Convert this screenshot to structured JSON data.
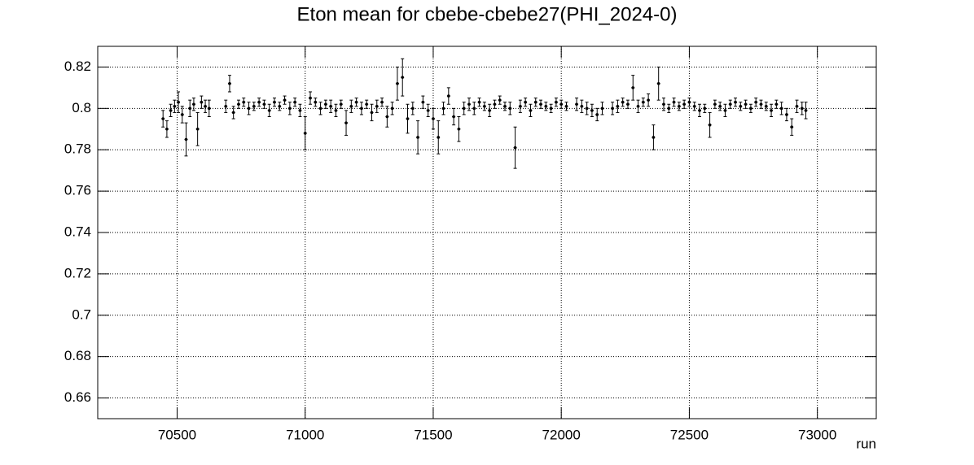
{
  "chart_data": {
    "type": "errorbar-scatter",
    "title": "Eton mean for cbebe-cbebe27(PHI_2024-0)",
    "x_label": "run",
    "xlim": [
      70190,
      73230
    ],
    "ylim": [
      0.65,
      0.83
    ],
    "xticks": [
      70500,
      71000,
      71500,
      72000,
      72500,
      73000
    ],
    "yticks": [
      0.66,
      0.68,
      0.7,
      0.72,
      0.74,
      0.76,
      0.78,
      0.8,
      0.82
    ],
    "grid": true,
    "color": "#000000",
    "x": [
      70445,
      70460,
      70475,
      70490,
      70505,
      70520,
      70535,
      70550,
      70565,
      70580,
      70595,
      70610,
      70625,
      70690,
      70705,
      70720,
      70740,
      70760,
      70780,
      70800,
      70820,
      70840,
      70860,
      70880,
      70900,
      70920,
      70940,
      70960,
      70980,
      71000,
      71020,
      71040,
      71060,
      71080,
      71100,
      71120,
      71140,
      71160,
      71180,
      71200,
      71220,
      71240,
      71260,
      71280,
      71300,
      71320,
      71340,
      71360,
      71380,
      71400,
      71420,
      71440,
      71460,
      71480,
      71500,
      71520,
      71540,
      71560,
      71580,
      71600,
      71620,
      71640,
      71660,
      71680,
      71700,
      71720,
      71740,
      71760,
      71780,
      71800,
      71820,
      71840,
      71860,
      71880,
      71900,
      71920,
      71940,
      71960,
      71980,
      72000,
      72020,
      72060,
      72080,
      72100,
      72120,
      72140,
      72160,
      72200,
      72220,
      72240,
      72260,
      72280,
      72300,
      72320,
      72340,
      72360,
      72380,
      72400,
      72420,
      72440,
      72460,
      72480,
      72500,
      72520,
      72540,
      72560,
      72580,
      72600,
      72620,
      72640,
      72660,
      72680,
      72700,
      72720,
      72740,
      72760,
      72780,
      72800,
      72820,
      72840,
      72860,
      72880,
      72900,
      72920,
      72940,
      72955
    ],
    "values": [
      0.795,
      0.79,
      0.799,
      0.801,
      0.803,
      0.797,
      0.785,
      0.8,
      0.802,
      0.79,
      0.803,
      0.801,
      0.8,
      0.801,
      0.812,
      0.798,
      0.802,
      0.803,
      0.8,
      0.801,
      0.803,
      0.802,
      0.799,
      0.803,
      0.801,
      0.804,
      0.8,
      0.803,
      0.799,
      0.788,
      0.805,
      0.803,
      0.8,
      0.802,
      0.801,
      0.799,
      0.802,
      0.793,
      0.801,
      0.803,
      0.8,
      0.802,
      0.798,
      0.801,
      0.803,
      0.796,
      0.8,
      0.812,
      0.815,
      0.795,
      0.8,
      0.786,
      0.803,
      0.799,
      0.795,
      0.786,
      0.8,
      0.806,
      0.796,
      0.79,
      0.8,
      0.802,
      0.8,
      0.803,
      0.801,
      0.799,
      0.802,
      0.804,
      0.801,
      0.8,
      0.781,
      0.801,
      0.803,
      0.799,
      0.803,
      0.802,
      0.801,
      0.8,
      0.803,
      0.802,
      0.801,
      0.802,
      0.801,
      0.8,
      0.799,
      0.797,
      0.8,
      0.8,
      0.801,
      0.803,
      0.802,
      0.81,
      0.801,
      0.803,
      0.804,
      0.786,
      0.812,
      0.802,
      0.8,
      0.803,
      0.801,
      0.802,
      0.803,
      0.801,
      0.799,
      0.8,
      0.792,
      0.802,
      0.801,
      0.799,
      0.802,
      0.803,
      0.801,
      0.802,
      0.8,
      0.803,
      0.802,
      0.801,
      0.799,
      0.802,
      0.8,
      0.797,
      0.791,
      0.801,
      0.8,
      0.799
    ],
    "errors": [
      0.004,
      0.004,
      0.003,
      0.003,
      0.005,
      0.004,
      0.008,
      0.004,
      0.003,
      0.008,
      0.003,
      0.003,
      0.004,
      0.003,
      0.004,
      0.003,
      0.002,
      0.002,
      0.003,
      0.002,
      0.002,
      0.002,
      0.003,
      0.002,
      0.002,
      0.002,
      0.003,
      0.002,
      0.003,
      0.008,
      0.003,
      0.002,
      0.003,
      0.002,
      0.003,
      0.003,
      0.002,
      0.006,
      0.003,
      0.002,
      0.003,
      0.002,
      0.004,
      0.003,
      0.002,
      0.005,
      0.003,
      0.008,
      0.009,
      0.007,
      0.003,
      0.008,
      0.003,
      0.003,
      0.005,
      0.008,
      0.003,
      0.004,
      0.004,
      0.006,
      0.003,
      0.003,
      0.003,
      0.002,
      0.002,
      0.003,
      0.002,
      0.002,
      0.002,
      0.003,
      0.01,
      0.003,
      0.002,
      0.003,
      0.002,
      0.002,
      0.002,
      0.002,
      0.002,
      0.002,
      0.002,
      0.003,
      0.003,
      0.003,
      0.003,
      0.003,
      0.003,
      0.003,
      0.003,
      0.002,
      0.002,
      0.006,
      0.003,
      0.002,
      0.003,
      0.006,
      0.008,
      0.003,
      0.002,
      0.002,
      0.002,
      0.002,
      0.002,
      0.002,
      0.003,
      0.002,
      0.006,
      0.002,
      0.002,
      0.003,
      0.002,
      0.002,
      0.002,
      0.002,
      0.002,
      0.002,
      0.002,
      0.002,
      0.003,
      0.002,
      0.003,
      0.003,
      0.004,
      0.003,
      0.003,
      0.004
    ]
  }
}
